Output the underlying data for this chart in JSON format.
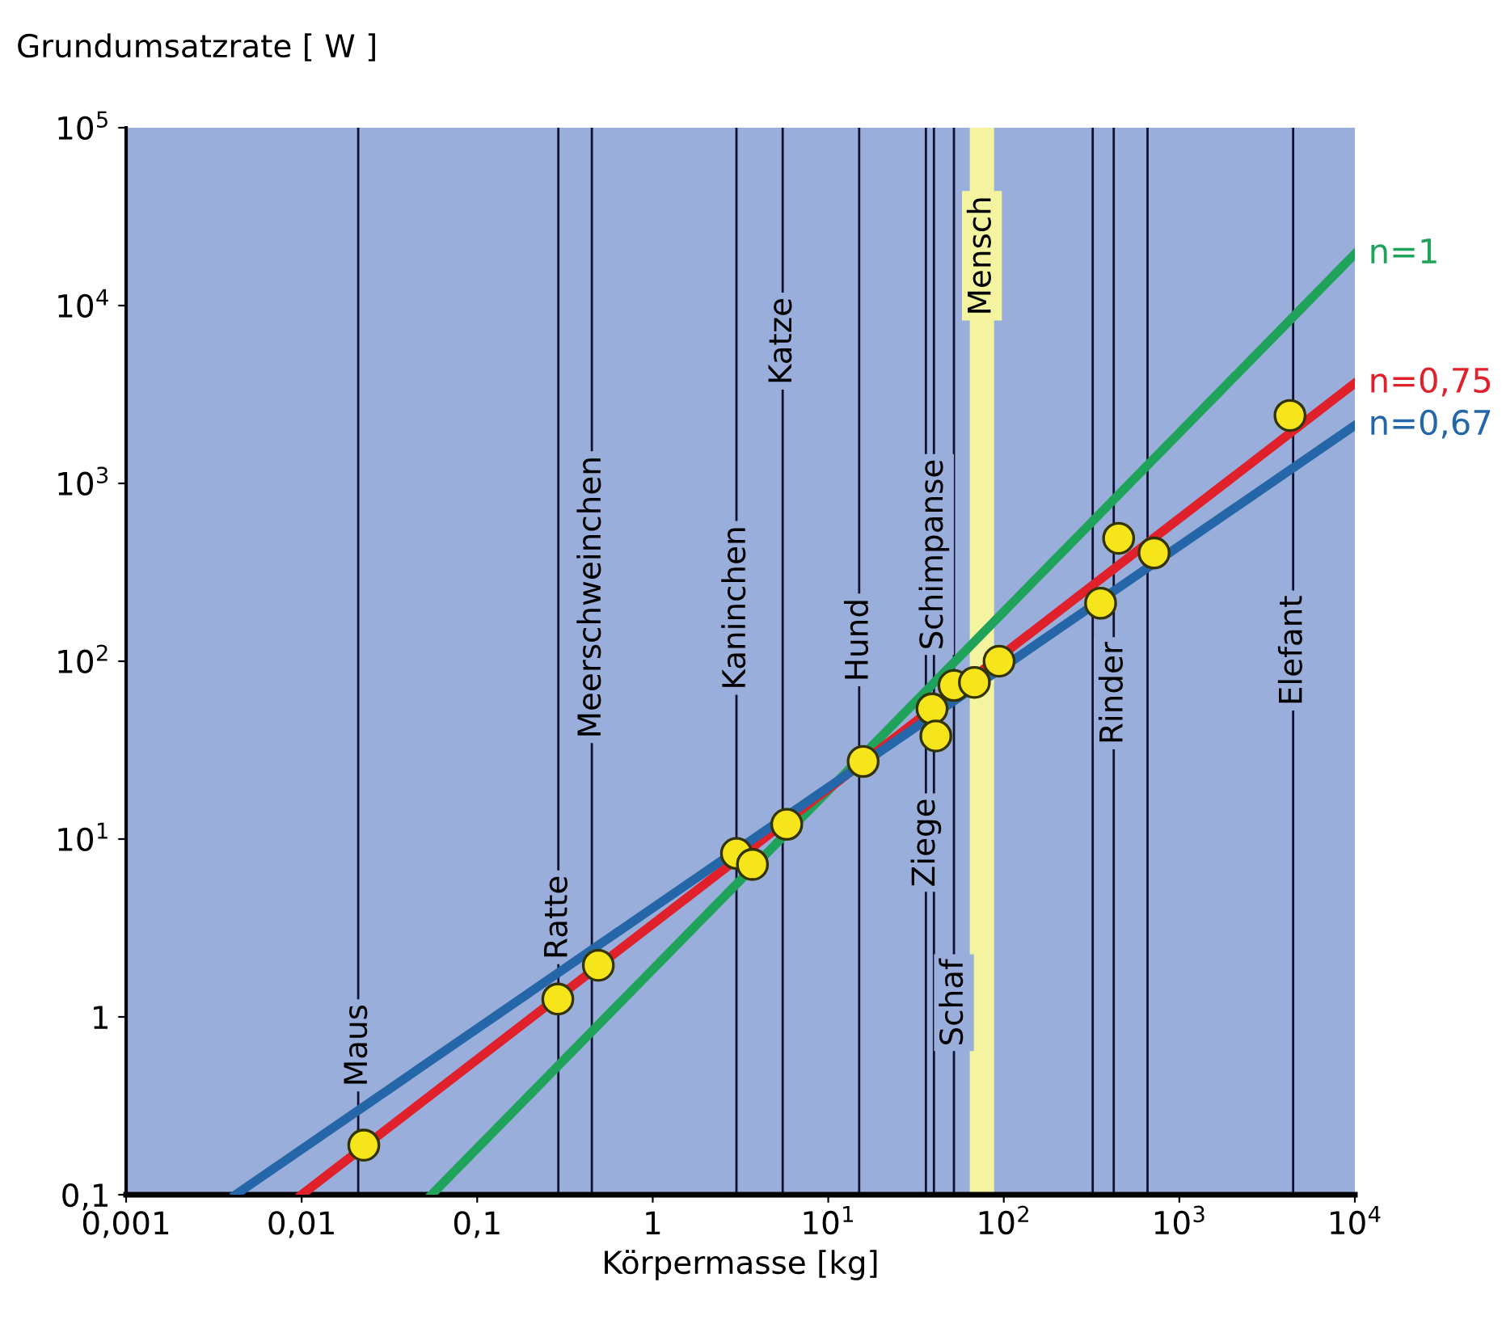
{
  "chart_data": {
    "type": "line",
    "xlabel": "Körpermasse [kg]",
    "ylabel": "Grundumsatzrate [ W ]",
    "xlim": [
      0.001,
      10000
    ],
    "ylim": [
      0.1,
      100000
    ],
    "log": "xy",
    "xticks": [
      {
        "value": 0.001,
        "label": "0,001"
      },
      {
        "value": 0.01,
        "label": "0,01"
      },
      {
        "value": 0.1,
        "label": "0,1"
      },
      1,
      {
        "value": 10,
        "label": "10$^{1}$"
      },
      {
        "value": 100,
        "label": "10$^{2}$"
      },
      {
        "value": 1000,
        "label": "10$^{3}$"
      },
      {
        "value": 10000,
        "label": "10$^{4}$"
      }
    ],
    "yticks": [
      {
        "value": 0.1,
        "label": "0,1"
      },
      1,
      {
        "value": 10,
        "label": "10$^{1}$"
      },
      {
        "value": 100,
        "label": "10$^{2}$"
      },
      {
        "value": 1000,
        "label": "10$^{3}$"
      },
      {
        "value": 10000,
        "label": "10$^{4}$"
      },
      {
        "value": 100000,
        "label": "10$^{5}$"
      }
    ],
    "grid": false,
    "legend": false,
    "series": [
      {
        "name": "n=1",
        "color": "#1fa35a",
        "x": [
          0.055,
          10000
        ],
        "values": [
          0.1,
          19500
        ]
      },
      {
        "name": "n=0,75",
        "color": "#e0202a",
        "x": [
          0.01,
          10000
        ],
        "values": [
          0.1,
          3660
        ]
      },
      {
        "name": "n=0,67",
        "color": "#2566a8",
        "x": [
          0.0042,
          10000
        ],
        "values": [
          0.1,
          2120
        ]
      },
      {
        "type": "scatter",
        "marker": "circle",
        "color": "#f5e51a",
        "x": [
          0.0226,
          0.288,
          0.49,
          3.0,
          3.7,
          5.8,
          15.8,
          39,
          41,
          52,
          68,
          94,
          356,
          451,
          718,
          4270
        ],
        "values": [
          0.19,
          1.26,
          1.95,
          8.3,
          7.2,
          12.1,
          27.3,
          54,
          38,
          73,
          76,
          100,
          212,
          491,
          406,
          2410
        ]
      }
    ],
    "ref_lines": [
      {
        "axis": "x",
        "value": 0.021,
        "label": "Maus"
      },
      {
        "axis": "x",
        "value": 0.29,
        "label": "Ratte"
      },
      {
        "axis": "x",
        "value": 0.45,
        "label": "Meerschweinchen"
      },
      {
        "axis": "x",
        "value": 3.0,
        "label": "Kaninchen"
      },
      {
        "axis": "x",
        "value": 5.5,
        "label": "Katze"
      },
      {
        "axis": "x",
        "value": 15,
        "label": "Hund"
      },
      {
        "axis": "x",
        "value": 36,
        "label": "Ziege"
      },
      {
        "axis": "x",
        "value": 40,
        "label": "Schimpanse"
      },
      {
        "axis": "x",
        "value": 52,
        "label": "Schaf"
      },
      {
        "axis": "x",
        "value": 321
      },
      {
        "axis": "x",
        "value": 423,
        "label": "Rinder"
      },
      {
        "axis": "x",
        "value": 659
      },
      {
        "axis": "x",
        "value": 4450,
        "label": "Elefant"
      }
    ],
    "bands": [
      {
        "axis": "x",
        "from": 64,
        "to": 88,
        "label": "Mensch",
        "color": "#f4f3a0"
      }
    ]
  }
}
